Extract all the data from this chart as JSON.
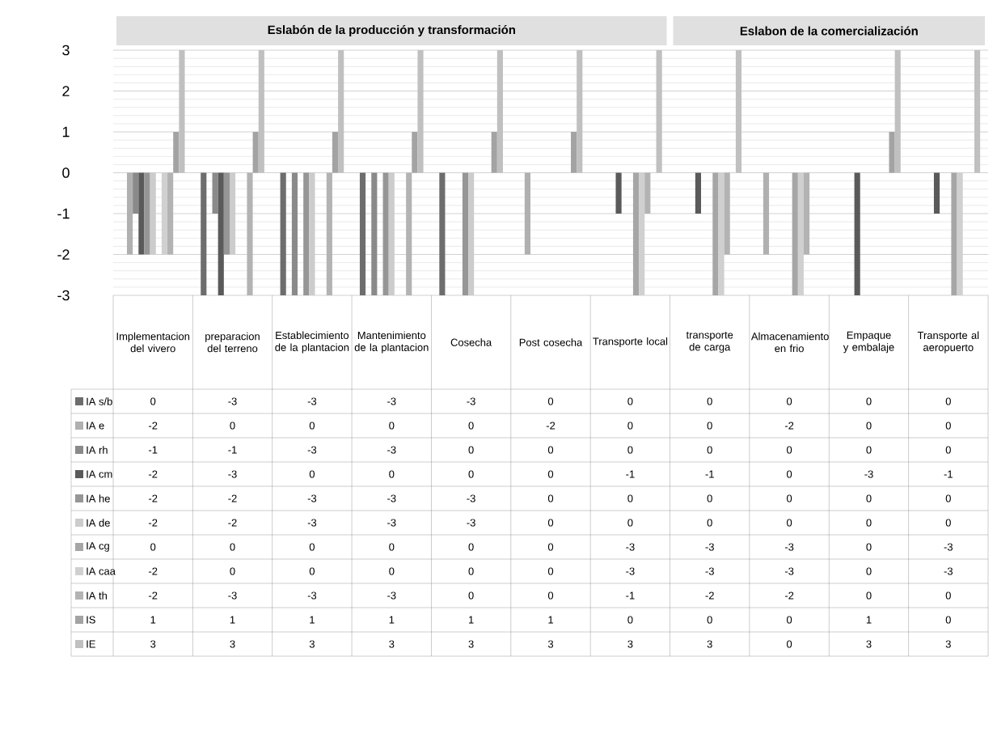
{
  "chart_data": {
    "type": "bar",
    "categories": [
      "Implementacion del vivero",
      "preparacion del terreno",
      "Establecimiento de la plantacion",
      "Mantenimiento de la plantacion",
      "Cosecha",
      "Post cosecha",
      "Transporte local",
      "transporte de carga",
      "Almacenamiento en frio",
      "Empaque y embalaje",
      "Transporte al aeropuerto"
    ],
    "series": [
      {
        "name": "IA s/b",
        "color": "#6d6d6d",
        "values": [
          0,
          -3,
          -3,
          -3,
          -3,
          0,
          0,
          0,
          0,
          0,
          0
        ]
      },
      {
        "name": "IA e",
        "color": "#b0b0b0",
        "values": [
          -2,
          0,
          0,
          0,
          0,
          -2,
          0,
          0,
          -2,
          0,
          0
        ]
      },
      {
        "name": "IA rh",
        "color": "#8a8a8a",
        "values": [
          -1,
          -1,
          -3,
          -3,
          0,
          0,
          0,
          0,
          0,
          0,
          0
        ]
      },
      {
        "name": "IA cm",
        "color": "#5a5a5a",
        "values": [
          -2,
          -3,
          0,
          0,
          0,
          0,
          -1,
          -1,
          0,
          -3,
          -1
        ]
      },
      {
        "name": "IA he",
        "color": "#969696",
        "values": [
          -2,
          -2,
          -3,
          -3,
          -3,
          0,
          0,
          0,
          0,
          0,
          0
        ]
      },
      {
        "name": "IA de",
        "color": "#cccccc",
        "values": [
          -2,
          -2,
          -3,
          -3,
          -3,
          0,
          0,
          0,
          0,
          0,
          0
        ]
      },
      {
        "name": "IA cg",
        "color": "#a6a6a6",
        "values": [
          0,
          0,
          0,
          0,
          0,
          0,
          -3,
          -3,
          -3,
          0,
          -3
        ]
      },
      {
        "name": "IA caa",
        "color": "#d0d0d0",
        "values": [
          -2,
          0,
          0,
          0,
          0,
          0,
          -3,
          -3,
          -3,
          0,
          -3
        ]
      },
      {
        "name": "IA th",
        "color": "#b3b3b3",
        "values": [
          -2,
          -3,
          -3,
          -3,
          0,
          0,
          -1,
          -2,
          -2,
          0,
          0
        ]
      },
      {
        "name": "IS",
        "color": "#a3a3a3",
        "values": [
          1,
          1,
          1,
          1,
          1,
          1,
          0,
          0,
          0,
          1,
          0
        ]
      },
      {
        "name": "IE",
        "color": "#c0c0c0",
        "values": [
          3,
          3,
          3,
          3,
          3,
          3,
          3,
          3,
          0,
          3,
          3
        ]
      }
    ],
    "ylim": [
      -3,
      3
    ],
    "yticks": [
      -3,
      -2,
      -1,
      0,
      1,
      2,
      3
    ],
    "grid": true,
    "legend": "bottom",
    "data_labels": true,
    "annotations": [
      "Eslabón  de la producción y transformación",
      "Eslabon de la comercialización"
    ]
  }
}
